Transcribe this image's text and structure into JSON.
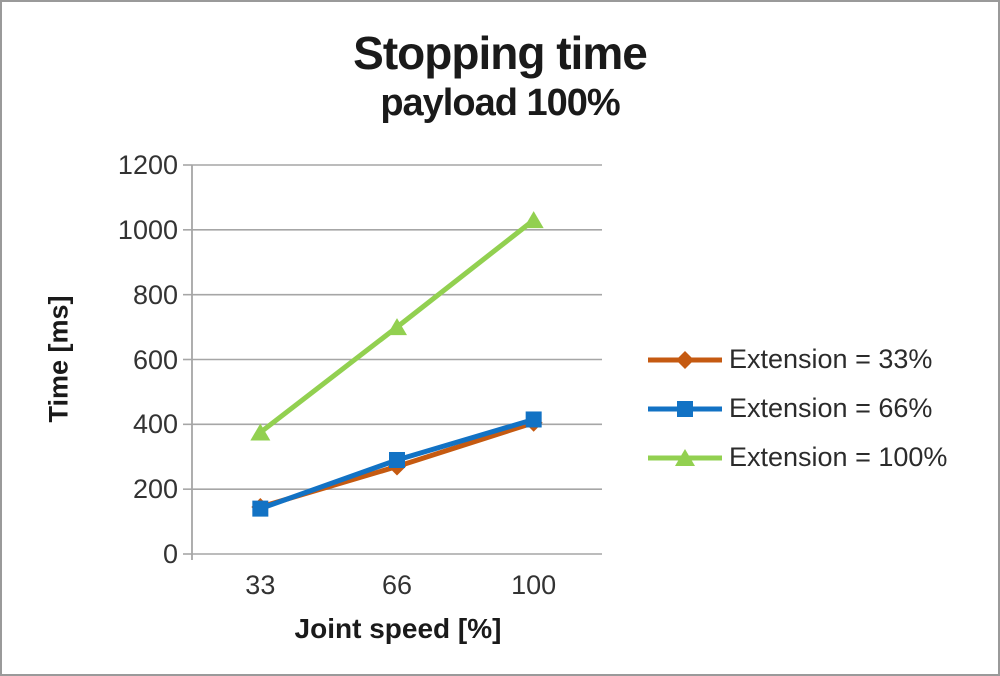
{
  "chart_data": {
    "type": "line",
    "title": "Stopping time",
    "subtitle": "payload 100%",
    "xlabel": "Joint speed [%]",
    "ylabel": "Time [ms]",
    "categories": [
      33,
      66,
      100
    ],
    "x_tick_labels": [
      "33",
      "66",
      "100"
    ],
    "yticks": [
      0,
      200,
      400,
      600,
      800,
      1000,
      1200
    ],
    "ylim": [
      0,
      1200
    ],
    "grid": true,
    "legend_position": "right",
    "series": [
      {
        "name": "Extension = 33%",
        "values": [
          145,
          270,
          405
        ],
        "color": "#C55A11",
        "marker": "diamond"
      },
      {
        "name": "Extension = 66%",
        "values": [
          140,
          290,
          415
        ],
        "color": "#1272C4",
        "marker": "square"
      },
      {
        "name": "Extension = 100%",
        "values": [
          375,
          700,
          1030
        ],
        "color": "#92D050",
        "marker": "triangle"
      }
    ],
    "colors": {
      "gridline": "#A6A6A6",
      "axis_line": "#A6A6A6",
      "text": "#333333",
      "title": "#1a1a1a",
      "background": "#ffffff"
    }
  }
}
